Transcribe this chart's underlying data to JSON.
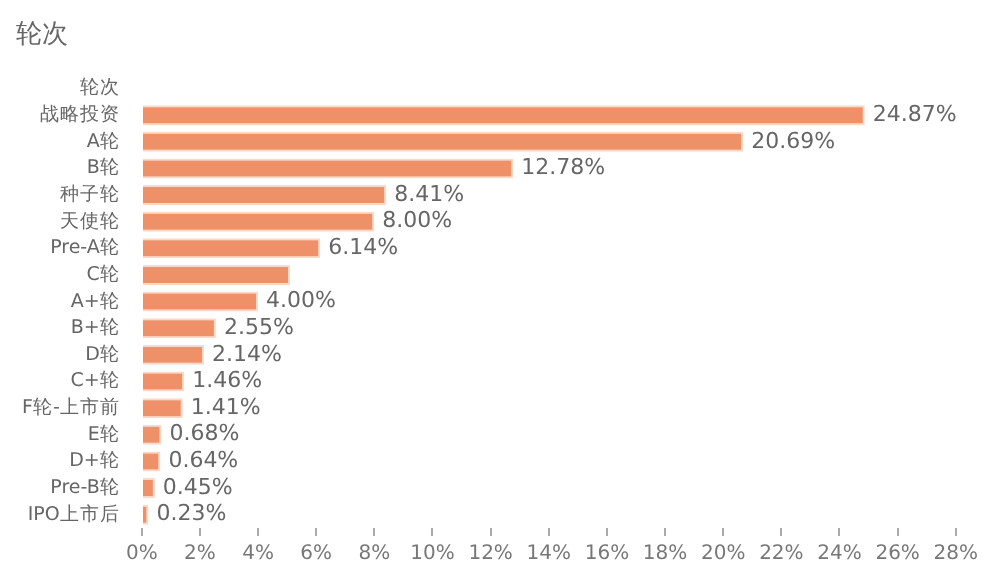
{
  "chart_data": {
    "type": "bar",
    "orientation": "horizontal",
    "title": "轮次",
    "categories": [
      "轮次",
      "战略投资",
      "A轮",
      "B轮",
      "种子轮",
      "天使轮",
      "Pre-A轮",
      "C轮",
      "A+轮",
      "B+轮",
      "D轮",
      "C+轮",
      "F轮-上市前",
      "E轮",
      "D+轮",
      "Pre-B轮",
      "IPO上市后"
    ],
    "values": [
      null,
      24.87,
      20.69,
      12.78,
      8.41,
      8.0,
      6.14,
      5.1,
      4.0,
      2.55,
      2.14,
      1.46,
      1.41,
      0.68,
      0.64,
      0.45,
      0.23
    ],
    "value_labels": [
      null,
      "24.87%",
      "20.69%",
      "12.78%",
      "8.41%",
      "8.00%",
      "6.14%",
      null,
      "4.00%",
      "2.55%",
      "2.14%",
      "1.46%",
      "1.41%",
      "0.68%",
      "0.64%",
      "0.45%",
      "0.23%"
    ],
    "color": "#ef9168",
    "xlim": [
      0,
      28
    ],
    "xticks": [
      {
        "value": 0,
        "label": "0%"
      },
      {
        "value": 2,
        "label": "2%"
      },
      {
        "value": 4,
        "label": "4%"
      },
      {
        "value": 6,
        "label": "6%"
      },
      {
        "value": 8,
        "label": "8%"
      },
      {
        "value": 10,
        "label": "10%"
      },
      {
        "value": 12,
        "label": "12%"
      },
      {
        "value": 14,
        "label": "14%"
      },
      {
        "value": 16,
        "label": "16%"
      },
      {
        "value": 18,
        "label": "18%"
      },
      {
        "value": 20,
        "label": "20%"
      },
      {
        "value": 22,
        "label": "22%"
      },
      {
        "value": 24,
        "label": "24%"
      },
      {
        "value": 26,
        "label": "26%"
      },
      {
        "value": 28,
        "label": "28%"
      }
    ],
    "grid": false,
    "legend": false
  }
}
